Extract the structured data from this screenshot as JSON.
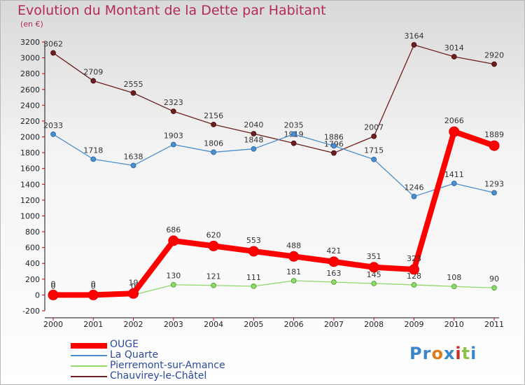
{
  "title": "Evolution du Montant de la Dette par Habitant",
  "unit_label": "(en €)",
  "logo_text": "Proxiti",
  "chart_data": {
    "type": "line",
    "x": [
      "2000",
      "2001",
      "2002",
      "2003",
      "2004",
      "2005",
      "2006",
      "2007",
      "2008",
      "2009",
      "2010",
      "2011"
    ],
    "ylim": [
      -200,
      3200
    ],
    "yticks": [
      -200,
      0,
      200,
      400,
      600,
      800,
      1000,
      1200,
      1400,
      1600,
      1800,
      2000,
      2200,
      2400,
      2600,
      2800,
      3000,
      3200
    ],
    "grid": false,
    "legend_position": "bottom-left",
    "series": [
      {
        "name": "OUGE",
        "color": "#ff0000",
        "marker_stroke": "#cc0000",
        "values": [
          0,
          0,
          19,
          686,
          620,
          553,
          488,
          421,
          351,
          323,
          2066,
          1889
        ],
        "labels": [
          "0",
          "0",
          "19",
          "686",
          "620",
          "553",
          "488",
          "421",
          "351",
          "323",
          "2066",
          "1889"
        ]
      },
      {
        "name": "La Quarte",
        "color": "#4a8fd0",
        "marker_stroke": "#2e6ba8",
        "values": [
          2033,
          1718,
          1638,
          1903,
          1806,
          1848,
          2035,
          1886,
          1715,
          1246,
          1411,
          1293
        ],
        "labels": [
          "2033",
          "1718",
          "1638",
          "1903",
          "1806",
          "1848",
          "2035",
          "1886",
          "1715",
          "1246",
          "1411",
          "1293"
        ]
      },
      {
        "name": "Pierremont-sur-Amance",
        "color": "#90d86a",
        "marker_stroke": "#58a838",
        "values": [
          0,
          0,
          0,
          130,
          121,
          111,
          181,
          163,
          145,
          128,
          108,
          90
        ],
        "labels": [
          "0",
          "0",
          "0",
          "130",
          "121",
          "111",
          "181",
          "163",
          "145",
          "128",
          "108",
          "90"
        ]
      },
      {
        "name": "Chauvirey-le-Châtel",
        "color": "#6e1e1e",
        "marker_stroke": "#4a1010",
        "values": [
          3062,
          2709,
          2555,
          2323,
          2156,
          2040,
          1919,
          1796,
          2007,
          3164,
          3014,
          2920
        ],
        "labels": [
          "3062",
          "2709",
          "2555",
          "2323",
          "2156",
          "2040",
          "1919",
          "1796",
          "2007",
          "3164",
          "3014",
          "2920"
        ]
      }
    ]
  }
}
